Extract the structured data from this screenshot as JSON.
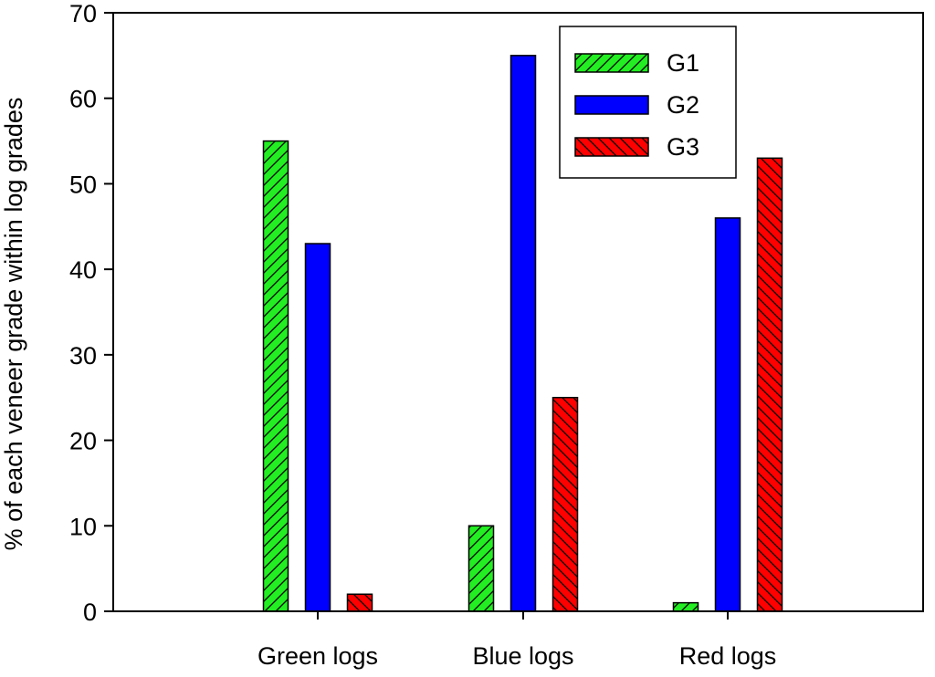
{
  "chart_data": {
    "type": "bar",
    "title": "",
    "xlabel": "",
    "ylabel": "% of each veneer grade within log grades",
    "categories": [
      "Green logs",
      "Blue logs",
      "Red logs"
    ],
    "ylim": [
      0,
      70
    ],
    "yticks": [
      0,
      10,
      20,
      30,
      40,
      50,
      60,
      70
    ],
    "grid": false,
    "legend": "top-right",
    "series": [
      {
        "name": "G1",
        "values": [
          55,
          10,
          1
        ],
        "color": "#22ee22",
        "pattern": "diagonal-forward-hatch"
      },
      {
        "name": "G2",
        "values": [
          43,
          65,
          46
        ],
        "color": "#0000ff",
        "pattern": "solid"
      },
      {
        "name": "G3",
        "values": [
          2,
          25,
          53
        ],
        "color": "#ff0000",
        "pattern": "diagonal-backward-hatch"
      }
    ]
  }
}
